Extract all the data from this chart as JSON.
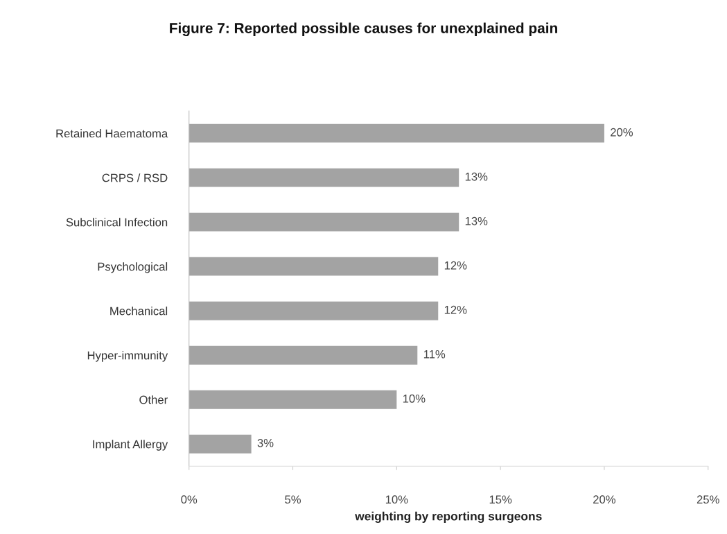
{
  "chart_data": {
    "type": "bar",
    "orientation": "horizontal",
    "title": "Figure 7: Reported possible causes for unexplained pain",
    "xlabel": "weighting by reporting surgeons",
    "categories": [
      "Retained Haematoma",
      "CRPS / RSD",
      "Subclinical Infection",
      "Psychological",
      "Mechanical",
      "Hyper-immunity",
      "Other",
      "Implant Allergy"
    ],
    "values": [
      20,
      13,
      13,
      12,
      12,
      11,
      10,
      3
    ],
    "value_labels": [
      "20%",
      "13%",
      "13%",
      "12%",
      "12%",
      "11%",
      "10%",
      "3%"
    ],
    "color": "#a3a3a3",
    "xlim": [
      0,
      25
    ],
    "xticks": [
      {
        "value": 0,
        "label": "0%"
      },
      {
        "value": 5,
        "label": "5%"
      },
      {
        "value": 10,
        "label": "10%"
      },
      {
        "value": 15,
        "label": "15%"
      },
      {
        "value": 20,
        "label": "20%"
      },
      {
        "value": 25,
        "label": "25%"
      }
    ],
    "grid": false,
    "legend": false
  }
}
